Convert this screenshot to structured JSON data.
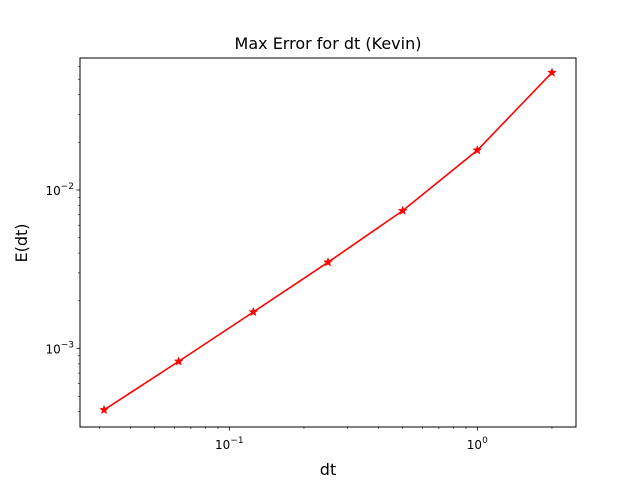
{
  "chart_data": {
    "type": "line",
    "title": "Max Error for dt (Kevin)",
    "xlabel": "dt",
    "ylabel": "E(dt)",
    "xscale": "log",
    "yscale": "log",
    "xlim": [
      0.025,
      2.5
    ],
    "ylim": [
      0.00032,
      0.068
    ],
    "grid": false,
    "legend": "none",
    "x_tick_labels": [
      {
        "value": 0.1,
        "base": "10",
        "exp": "−1"
      },
      {
        "value": 1,
        "base": "10",
        "exp": "0"
      }
    ],
    "y_tick_labels": [
      {
        "value": 0.001,
        "base": "10",
        "exp": "−3"
      },
      {
        "value": 0.01,
        "base": "10",
        "exp": "−2"
      }
    ],
    "series": [
      {
        "color": "#ff0000",
        "marker": "star",
        "x": [
          0.03125,
          0.0625,
          0.125,
          0.25,
          0.5,
          1,
          2
        ],
        "y": [
          0.00041,
          0.00083,
          0.0017,
          0.0035,
          0.0074,
          0.0178,
          0.055
        ]
      }
    ]
  }
}
